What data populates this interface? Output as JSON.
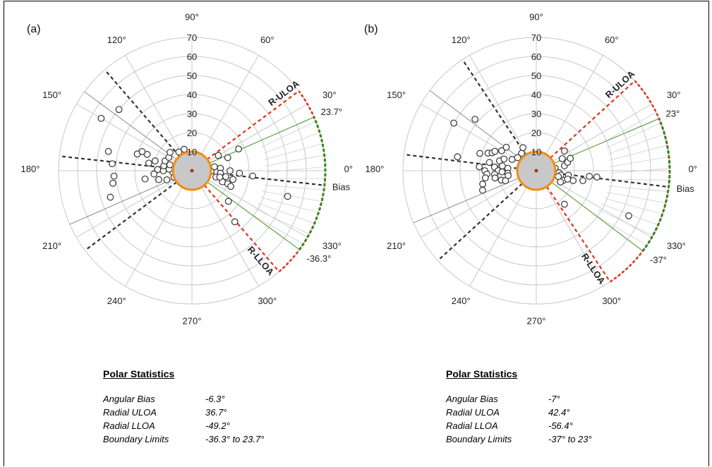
{
  "panels": [
    {
      "label": "(a)",
      "angle_labels": [
        "0°",
        "30°",
        "60°",
        "90°",
        "120°",
        "150°",
        "180°",
        "210°",
        "240°",
        "270°",
        "300°",
        "330°"
      ],
      "radial_ticks": [
        "10",
        "20",
        "30",
        "40",
        "50",
        "60",
        "70"
      ],
      "bias_label": "Bias",
      "uloa_label": "R-ULOA",
      "lloa_label": "R-LLOA",
      "upper_boundary_label": "23.7°",
      "lower_boundary_label": "-36.3°",
      "stats": {
        "title": "Polar Statistics",
        "rows": [
          {
            "key": "Angular Bias",
            "value": "-6.3°"
          },
          {
            "key": "Radial ULOA",
            "value": "36.7°"
          },
          {
            "key": "Radial LLOA",
            "value": "-49.2°"
          },
          {
            "key": "Boundary Limits",
            "value": "-36.3° to 23.7°"
          }
        ]
      }
    },
    {
      "label": "(b)",
      "angle_labels": [
        "0°",
        "30°",
        "60°",
        "90°",
        "120°",
        "150°",
        "180°",
        "210°",
        "240°",
        "270°",
        "300°",
        "330°"
      ],
      "radial_ticks": [
        "10",
        "20",
        "30",
        "40",
        "50",
        "60",
        "70"
      ],
      "bias_label": "Bias",
      "uloa_label": "R-ULOA",
      "lloa_label": "R-LLOA",
      "upper_boundary_label": "23°",
      "lower_boundary_label": "-37°",
      "stats": {
        "title": "Polar Statistics",
        "rows": [
          {
            "key": "Angular Bias",
            "value": "-7°"
          },
          {
            "key": "Radial ULOA",
            "value": "42.4°"
          },
          {
            "key": "Radial LLOA",
            "value": "-56.4°"
          },
          {
            "key": "Boundary Limits",
            "value": "-37° to 23°"
          }
        ]
      }
    }
  ],
  "colors": {
    "uloa_lloa": "#e0321e",
    "boundary": "#2a8a1e",
    "boundary_ray": "#6aa84f",
    "central_circle": "#f08c10",
    "central_fill": "#c8c8c8",
    "bias_lines": "#333333",
    "grid": "#c8c8c8"
  },
  "chart_data": [
    {
      "type": "scatter",
      "projection": "polar",
      "r_range": [
        0,
        70
      ],
      "r_ticks": [
        10,
        20,
        30,
        40,
        50,
        60,
        70
      ],
      "angle_ticks_deg": [
        0,
        30,
        60,
        90,
        120,
        150,
        180,
        210,
        240,
        270,
        300,
        330
      ],
      "bias_deg": -6.3,
      "r_uloa_deg": 36.7,
      "r_lloa_deg": -49.2,
      "boundary_limits_deg": [
        -36.3,
        23.7
      ],
      "central_radius": 10,
      "points_theta_r": [
        [
          140,
          50
        ],
        [
          150,
          55
        ],
        [
          167,
          45
        ],
        [
          175,
          42
        ],
        [
          184,
          41
        ],
        [
          189,
          42
        ],
        [
          198,
          45
        ],
        [
          160,
          25
        ],
        [
          163,
          30
        ],
        [
          159,
          28
        ],
        [
          165,
          20
        ],
        [
          170,
          23
        ],
        [
          178,
          18
        ],
        [
          180,
          15
        ],
        [
          185,
          20
        ],
        [
          190,
          25
        ],
        [
          195,
          18
        ],
        [
          200,
          14
        ],
        [
          185,
          10
        ],
        [
          176,
          12
        ],
        [
          170,
          15
        ],
        [
          160,
          15
        ],
        [
          150,
          14
        ],
        [
          165,
          12
        ],
        [
          175,
          8
        ],
        [
          190,
          8
        ],
        [
          200,
          10
        ],
        [
          140,
          15
        ],
        [
          125,
          12
        ],
        [
          110,
          12
        ],
        [
          30,
          16
        ],
        [
          25,
          27
        ],
        [
          10,
          12
        ],
        [
          20,
          20
        ],
        [
          5,
          15
        ],
        [
          -5,
          15
        ],
        [
          -10,
          18
        ],
        [
          -15,
          13
        ],
        [
          -20,
          17
        ],
        [
          -5,
          32
        ],
        [
          -13,
          15
        ],
        [
          -20,
          20
        ],
        [
          -12,
          22
        ],
        [
          -22,
          22
        ],
        [
          0,
          20
        ],
        [
          -3,
          25
        ],
        [
          -40,
          25
        ],
        [
          -50,
          35
        ],
        [
          -15,
          52
        ],
        [
          0,
          8
        ],
        [
          -2,
          10
        ],
        [
          3,
          8
        ]
      ]
    },
    {
      "type": "scatter",
      "projection": "polar",
      "r_range": [
        0,
        70
      ],
      "r_ticks": [
        10,
        20,
        30,
        40,
        50,
        60,
        70
      ],
      "angle_ticks_deg": [
        0,
        30,
        60,
        90,
        120,
        150,
        180,
        210,
        240,
        270,
        300,
        330
      ],
      "bias_deg": -7,
      "r_uloa_deg": 42.4,
      "r_lloa_deg": -56.4,
      "boundary_limits_deg": [
        -37,
        23
      ],
      "central_radius": 10,
      "points_theta_r": [
        [
          140,
          42
        ],
        [
          150,
          50
        ],
        [
          160,
          27
        ],
        [
          163,
          31
        ],
        [
          158,
          25
        ],
        [
          155,
          24
        ],
        [
          150,
          21
        ],
        [
          142,
          20
        ],
        [
          170,
          42
        ],
        [
          176,
          30
        ],
        [
          180,
          27
        ],
        [
          184,
          26
        ],
        [
          188,
          27
        ],
        [
          194,
          29
        ],
        [
          200,
          30
        ],
        [
          170,
          25
        ],
        [
          175,
          22
        ],
        [
          180,
          20
        ],
        [
          185,
          22
        ],
        [
          190,
          22
        ],
        [
          195,
          19
        ],
        [
          165,
          20
        ],
        [
          160,
          18
        ],
        [
          155,
          14
        ],
        [
          175,
          15
        ],
        [
          185,
          15
        ],
        [
          190,
          15
        ],
        [
          172,
          18
        ],
        [
          182,
          18
        ],
        [
          198,
          17
        ],
        [
          145,
          12
        ],
        [
          130,
          12
        ],
        [
          120,
          14
        ],
        [
          10,
          15
        ],
        [
          15,
          17
        ],
        [
          20,
          19
        ],
        [
          25,
          15
        ],
        [
          35,
          18
        ],
        [
          0,
          10
        ],
        [
          -5,
          12
        ],
        [
          -10,
          13
        ],
        [
          -15,
          12
        ],
        [
          -20,
          15
        ],
        [
          -25,
          14
        ],
        [
          -8,
          17
        ],
        [
          -15,
          20
        ],
        [
          -12,
          25
        ],
        [
          -6,
          28
        ],
        [
          -6,
          32
        ],
        [
          -15,
          17
        ],
        [
          -50,
          23
        ],
        [
          -26,
          54
        ],
        [
          5,
          8
        ],
        [
          -3,
          8
        ],
        [
          8,
          10
        ]
      ]
    }
  ]
}
